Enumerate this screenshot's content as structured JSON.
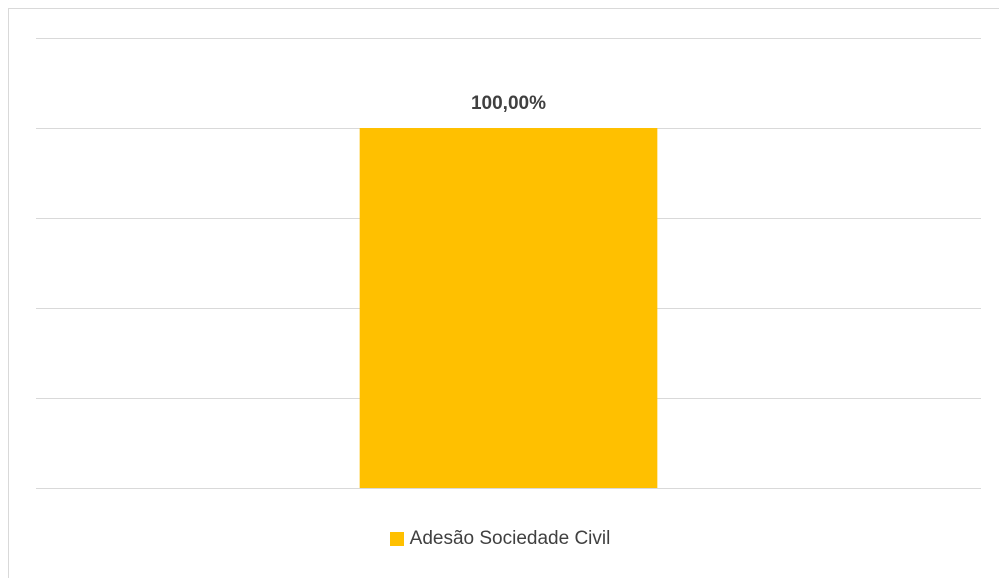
{
  "chart_data": {
    "type": "bar",
    "categories": [
      ""
    ],
    "series": [
      {
        "name": "Adesão Sociedade Civil",
        "values": [
          100.0
        ],
        "value_label": "100,00%",
        "color": "#FFC000"
      }
    ],
    "ylim": [
      0,
      125
    ],
    "grid": true,
    "legend_position": "bottom",
    "gridline_color": "#d9d9d9",
    "label_color": "#404040"
  }
}
